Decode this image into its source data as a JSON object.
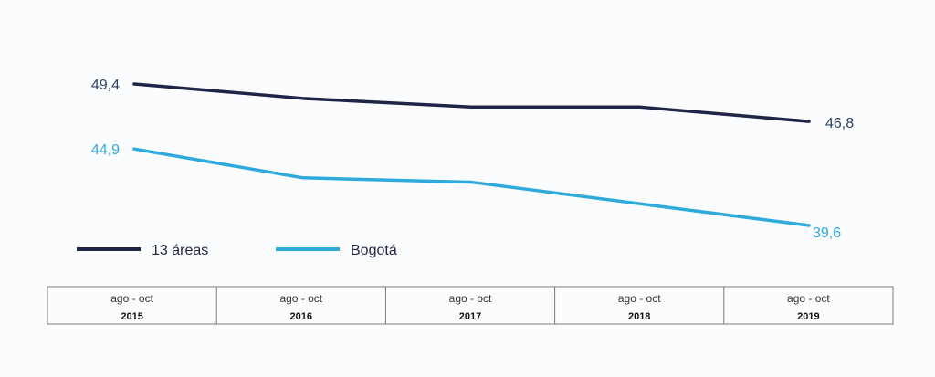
{
  "chart_data": {
    "type": "line",
    "title": "",
    "xlabel": "",
    "ylabel": "",
    "categories": [
      {
        "period": "ago - oct",
        "year": "2015"
      },
      {
        "period": "ago - oct",
        "year": "2016"
      },
      {
        "period": "ago - oct",
        "year": "2017"
      },
      {
        "period": "ago - oct",
        "year": "2018"
      },
      {
        "period": "ago - oct",
        "year": "2019"
      }
    ],
    "series": [
      {
        "name": "13 áreas",
        "color": "#1f2547",
        "label_color": "#2d3f66",
        "values": [
          49.4,
          48.4,
          47.8,
          47.8,
          46.8
        ],
        "labels": {
          "first": "49,4",
          "last": "46,8"
        }
      },
      {
        "name": "Bogotá",
        "color": "#2eaadc",
        "label_color": "#2eaadc",
        "values": [
          44.9,
          42.9,
          42.6,
          41.1,
          39.6
        ],
        "labels": {
          "first": "44,9",
          "last": "39,6"
        }
      }
    ],
    "ylim": [
      35,
      52
    ],
    "grid": false,
    "legend_position": "bottom-left"
  }
}
